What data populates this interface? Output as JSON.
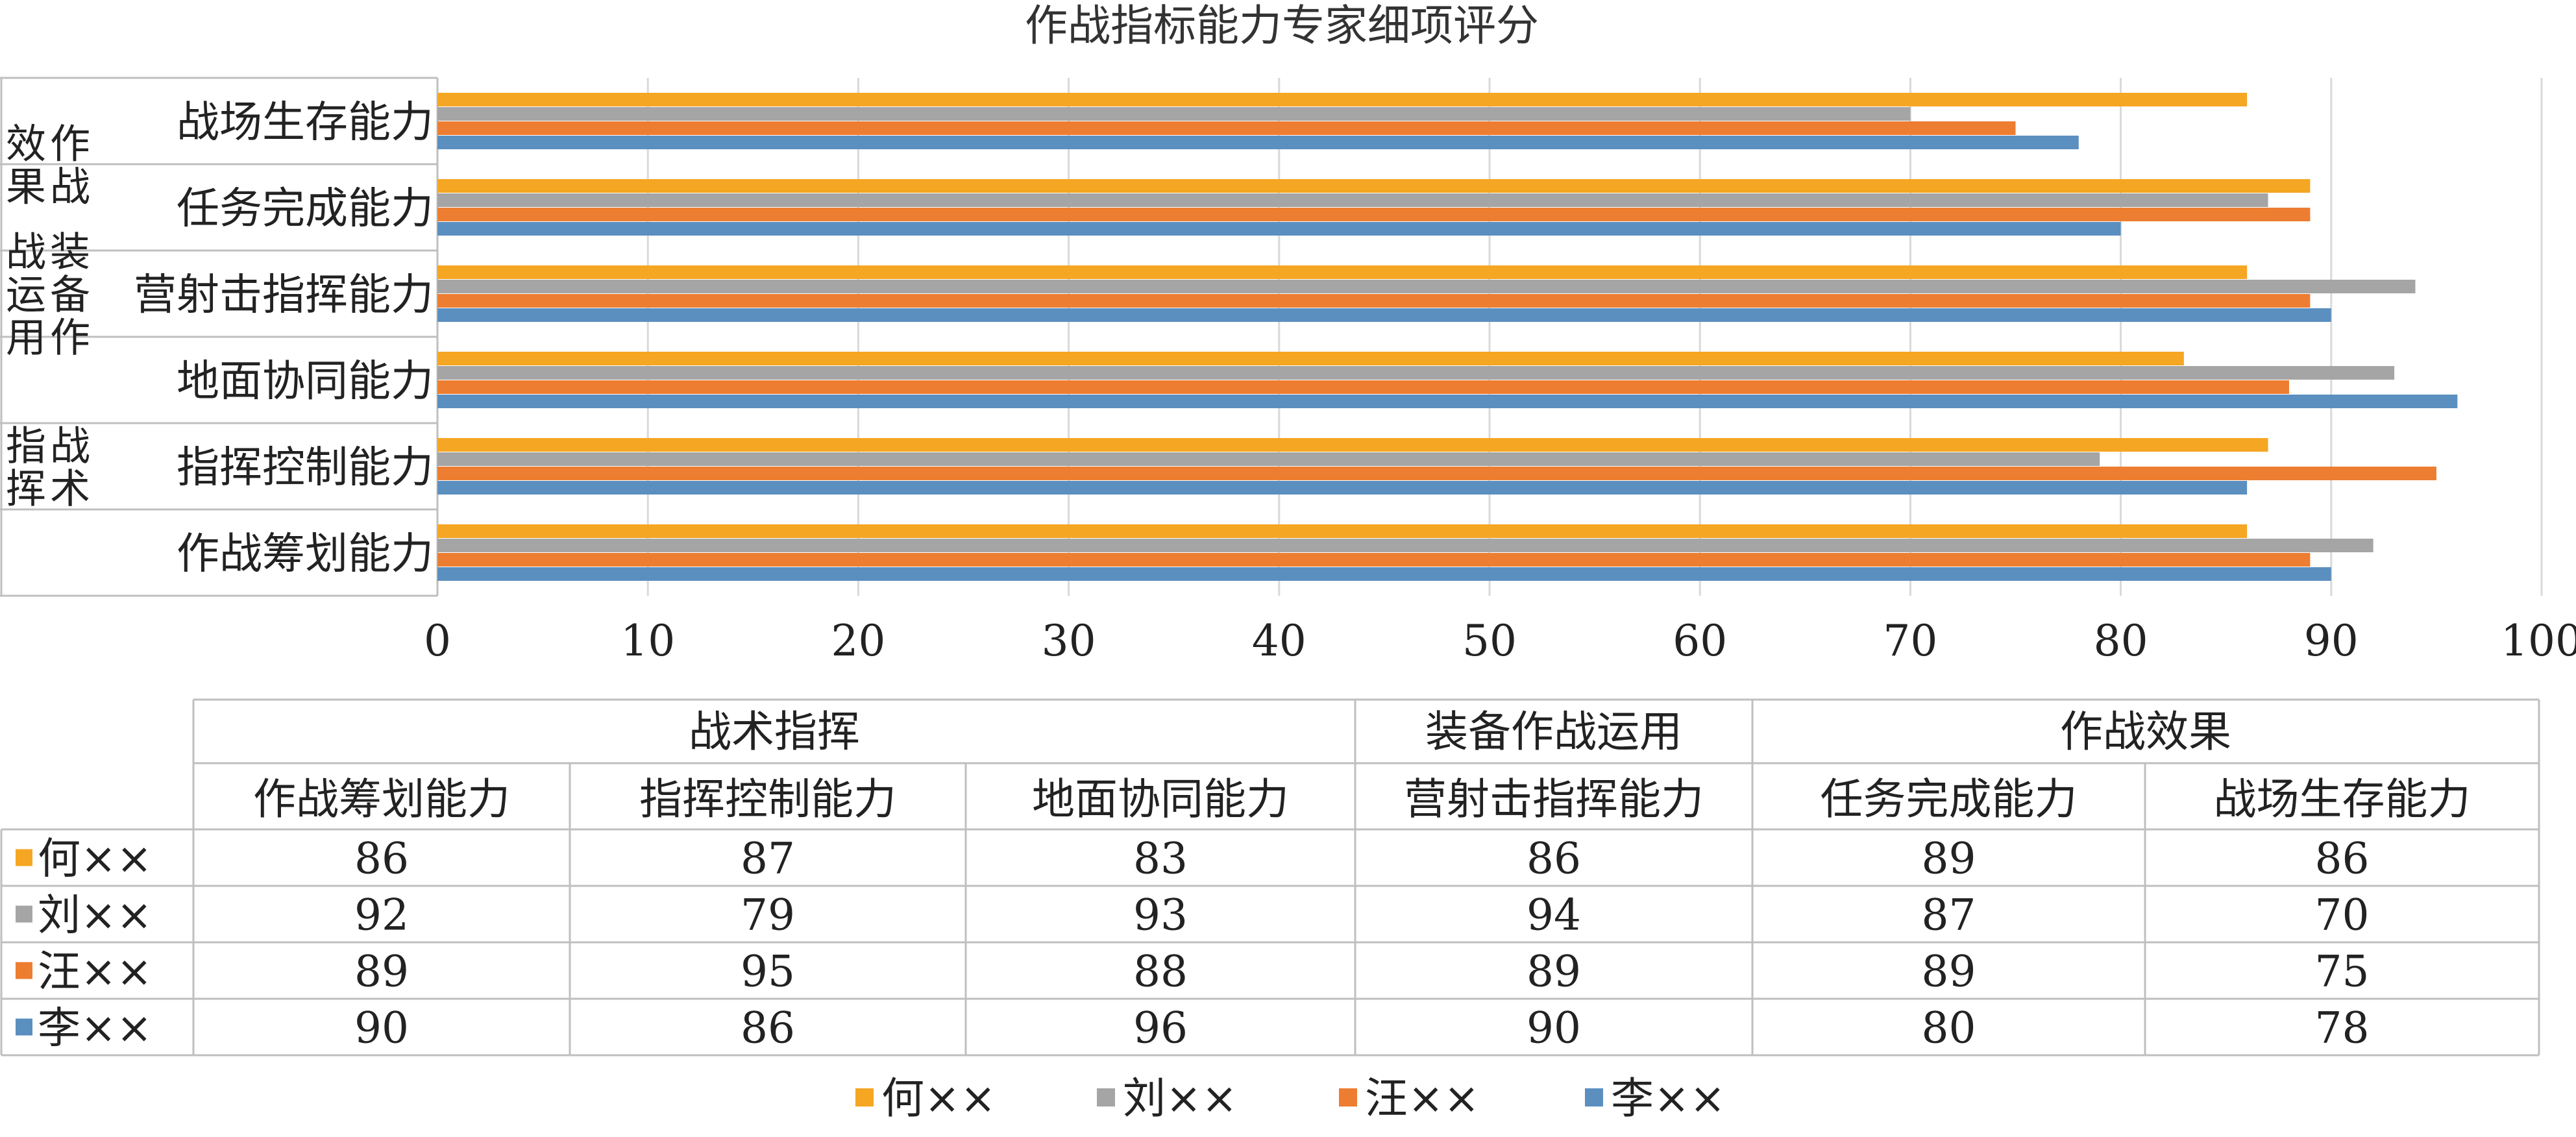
{
  "chart_data": {
    "type": "bar",
    "orientation": "horizontal",
    "title": "作战指标能力专家细项评分",
    "groups": [
      {
        "name": "战术指挥",
        "categories": [
          "作战筹划能力",
          "指挥控制能力",
          "地面协同能力"
        ]
      },
      {
        "name": "装备作战运用",
        "categories": [
          "营射击指挥能力"
        ]
      },
      {
        "name": "作战效果",
        "categories": [
          "任务完成能力",
          "战场生存能力"
        ]
      }
    ],
    "categories": [
      "作战筹划能力",
      "指挥控制能力",
      "地面协同能力",
      "营射击指挥能力",
      "任务完成能力",
      "战场生存能力"
    ],
    "series": [
      {
        "name": "何××",
        "color": "#F5A623",
        "values": [
          86,
          87,
          83,
          86,
          89,
          86
        ]
      },
      {
        "name": "刘××",
        "color": "#A5A5A5",
        "values": [
          92,
          79,
          93,
          94,
          87,
          70
        ]
      },
      {
        "name": "汪××",
        "color": "#ED7D31",
        "values": [
          89,
          95,
          88,
          89,
          89,
          75
        ]
      },
      {
        "name": "李××",
        "color": "#5B8FC0",
        "values": [
          90,
          86,
          96,
          90,
          80,
          78
        ]
      }
    ],
    "xlim": [
      0,
      100
    ],
    "xticks": [
      "0",
      "10",
      "20",
      "30",
      "40",
      "50",
      "60",
      "70",
      "80",
      "90",
      "100"
    ],
    "grid": true,
    "legend": "bottom",
    "data_table": true
  }
}
